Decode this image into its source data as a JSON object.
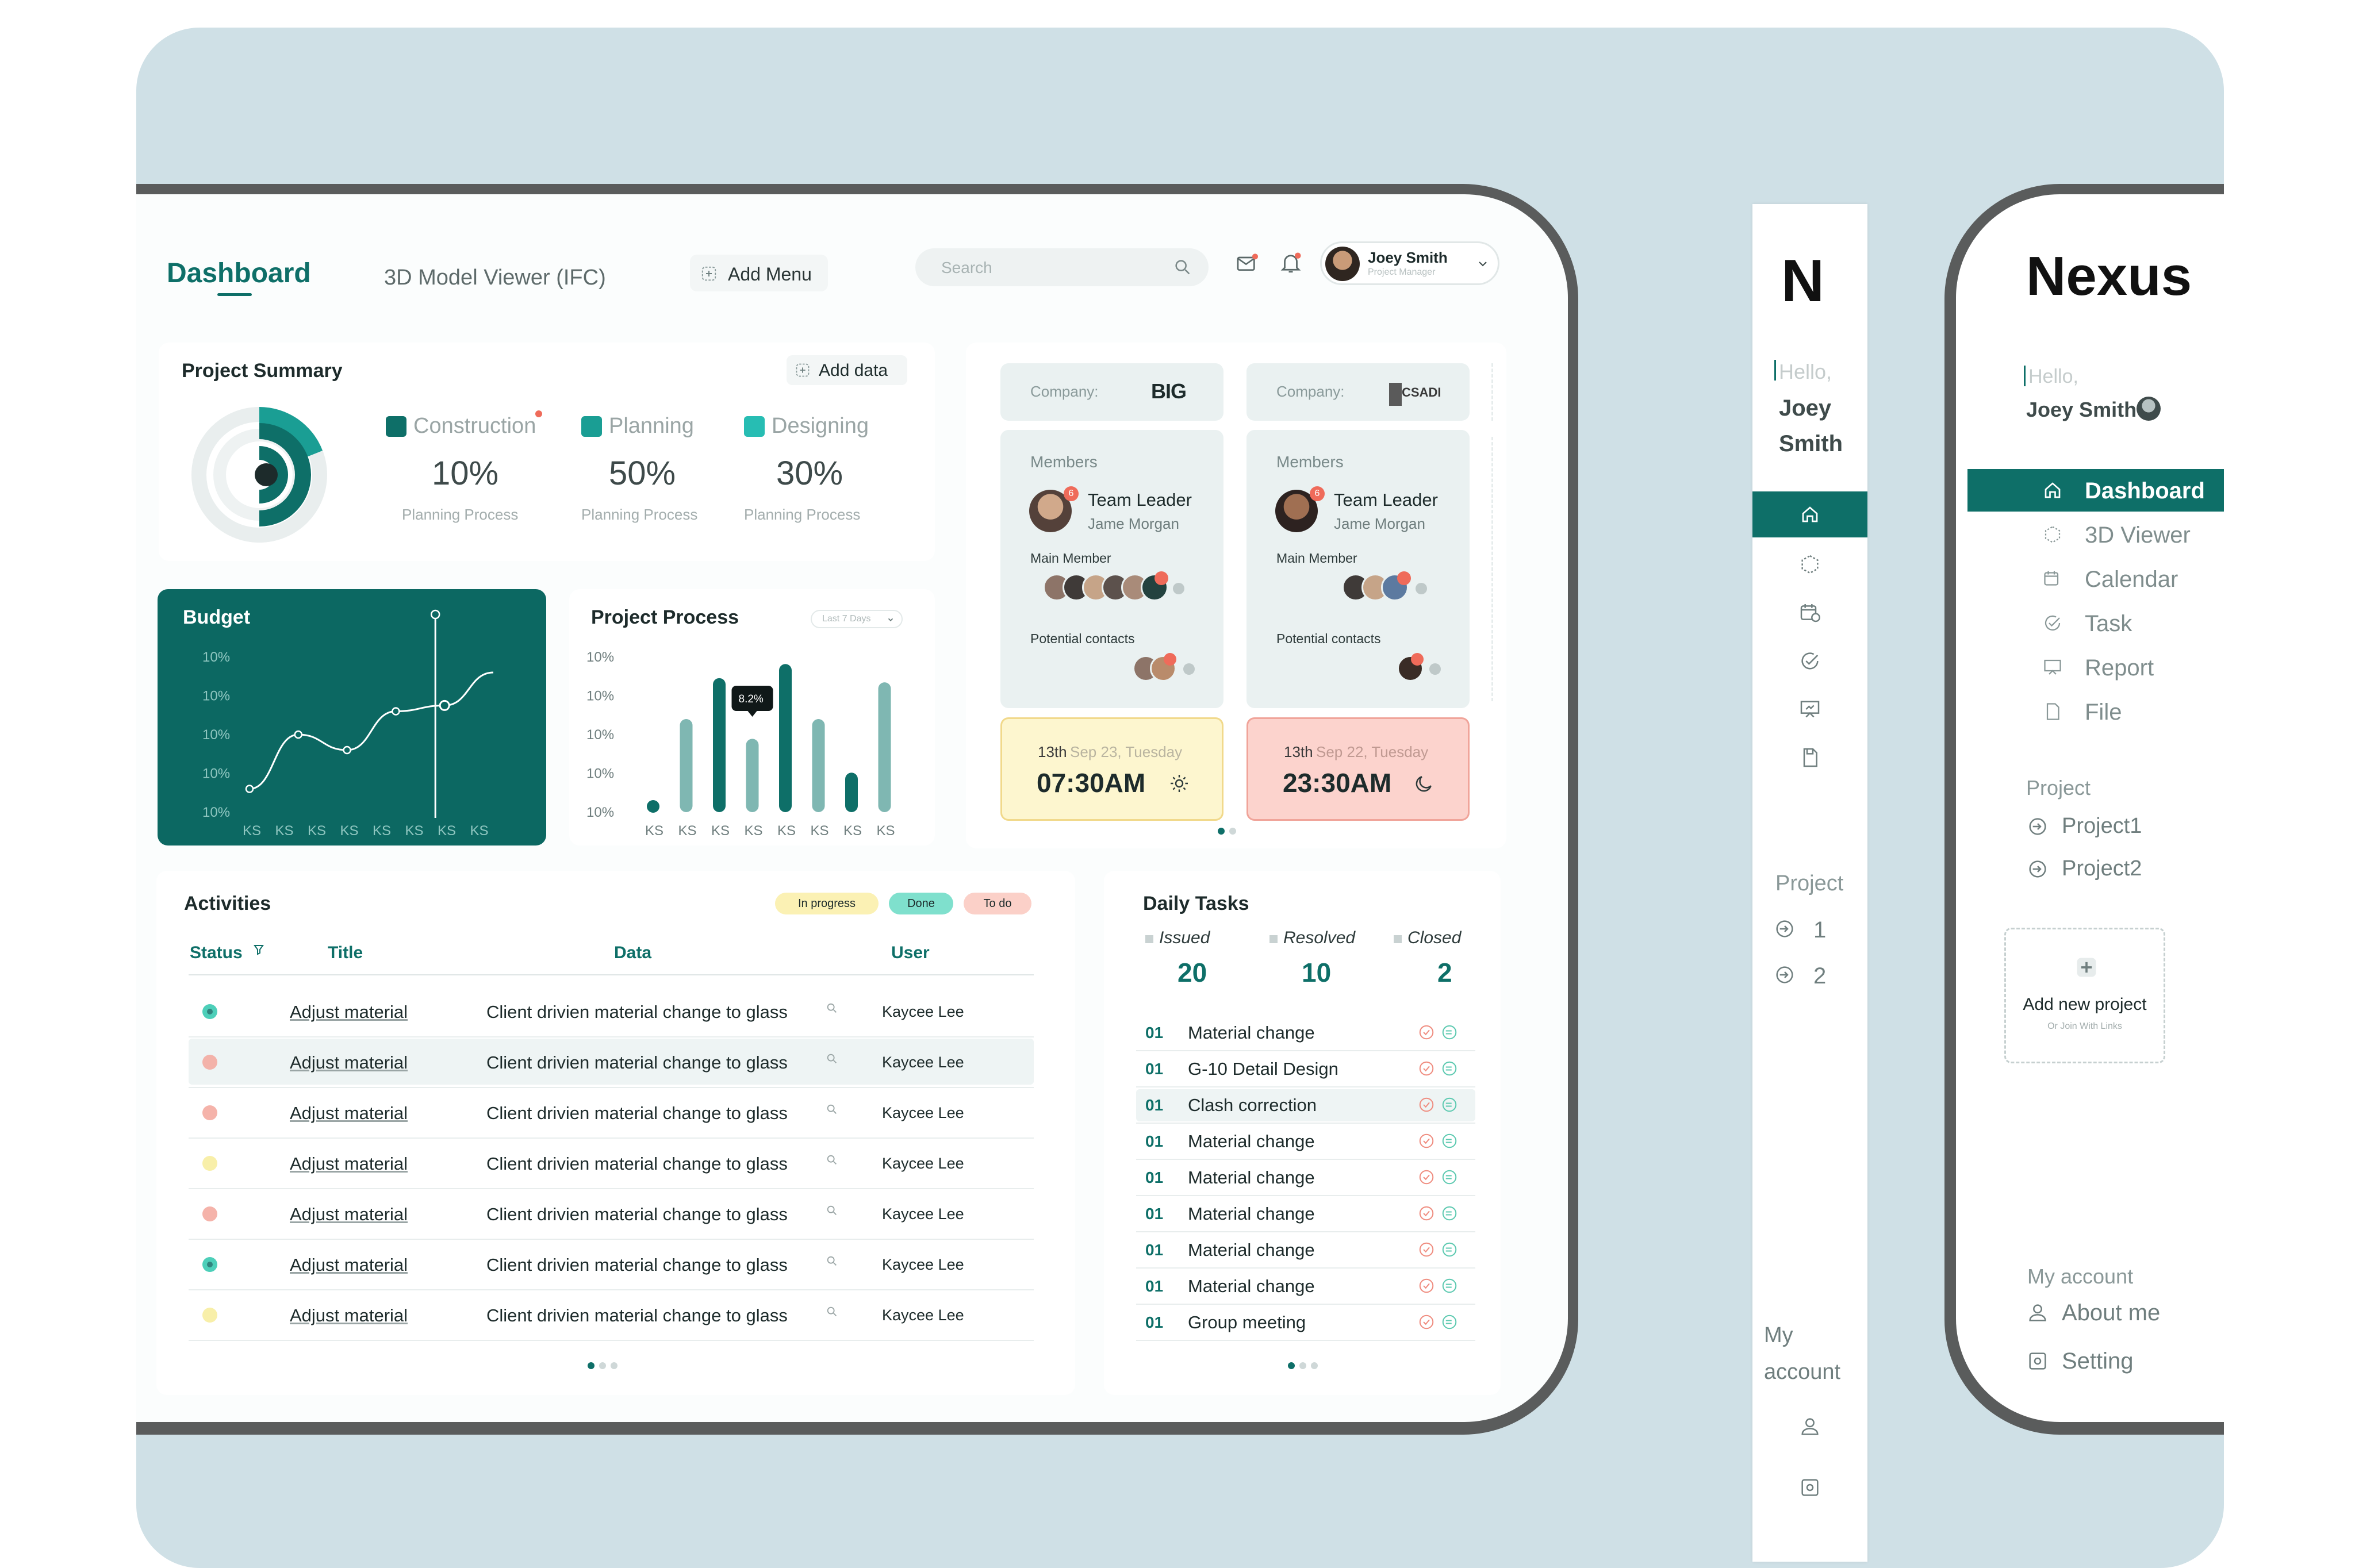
{
  "header": {
    "title": "Dashboard",
    "tab_viewer": "3D Model Viewer (IFC)",
    "add_menu": "Add Menu",
    "search_placeholder": "Search",
    "user_name": "Joey Smith",
    "user_role": "Project Manager"
  },
  "summary": {
    "title": "Project Summary",
    "add_data": "Add data",
    "items": [
      {
        "label": "Construction",
        "value": "10%",
        "sub": "Planning  Process",
        "color": "#0e6f68"
      },
      {
        "label": "Planning",
        "value": "50%",
        "sub": "Planning  Process",
        "color": "#1a9e94"
      },
      {
        "label": "Designing",
        "value": "30%",
        "sub": "Planning  Process",
        "color": "#27bdb3"
      }
    ]
  },
  "budget": {
    "title": "Budget",
    "yticks": [
      "10%",
      "10%",
      "10%",
      "10%",
      "10%"
    ],
    "xticks": [
      "KS",
      "KS",
      "KS",
      "KS",
      "KS",
      "KS",
      "KS",
      "KS"
    ],
    "line": [
      12,
      40,
      32,
      52,
      55,
      72
    ]
  },
  "process": {
    "title": "Project Process",
    "range": "Last 7 Days",
    "tooltip": "8.2%",
    "yticks": [
      "10%",
      "10%",
      "10%",
      "10%",
      "10%"
    ],
    "xticks": [
      "KS",
      "KS",
      "KS",
      "KS",
      "KS",
      "KS",
      "KS",
      "KS"
    ],
    "bars": [
      {
        "value": 8,
        "dark": true
      },
      {
        "value": 66,
        "dark": false
      },
      {
        "value": 95,
        "dark": true
      },
      {
        "value": 52,
        "dark": false
      },
      {
        "value": 105,
        "dark": true
      },
      {
        "value": 66,
        "dark": false
      },
      {
        "value": 28,
        "dark": true
      },
      {
        "value": 92,
        "dark": false
      }
    ]
  },
  "companies": [
    {
      "company_label": "Company:",
      "logo": "BIG",
      "members_label": "Members",
      "role": "Team Leader",
      "name": "Jame Morgan",
      "main_member": "Main Member",
      "potential": "Potential contacts",
      "date_bold": "13th",
      "date_rest": "Sep 23, Tuesday",
      "time": "07:30AM",
      "time_icon": "sun-icon",
      "bg": "#fdf6cf",
      "border": "#f1d98b"
    },
    {
      "company_label": "Company:",
      "logo": "CSADI",
      "members_label": "Members",
      "role": "Team Leader",
      "name": "Jame Morgan",
      "main_member": "Main Member",
      "potential": "Potential contacts",
      "date_bold": "13th",
      "date_rest": "Sep 22, Tuesday",
      "time": "23:30AM",
      "time_icon": "moon-icon",
      "bg": "#fcd3cd",
      "border": "#f0a49a"
    }
  ],
  "activities": {
    "title": "Activities",
    "legend": [
      {
        "label": "In progress",
        "bg": "#fbf1b4"
      },
      {
        "label": "Done",
        "bg": "#7fe0cd"
      },
      {
        "label": "To do",
        "bg": "#fbd0c8"
      }
    ],
    "columns": [
      "Status",
      "Title",
      "Data",
      "User"
    ],
    "rows": [
      {
        "status": "done",
        "title": "Adjust material",
        "data": "Client drivien material change to glass",
        "user": "Kaycee Lee"
      },
      {
        "status": "todo",
        "title": "Adjust material",
        "data": "Client drivien material change to glass",
        "user": "Kaycee Lee"
      },
      {
        "status": "todo",
        "title": "Adjust material",
        "data": "Client drivien material change to glass",
        "user": "Kaycee Lee"
      },
      {
        "status": "progress",
        "title": "Adjust material",
        "data": "Client drivien material change to glass",
        "user": "Kaycee Lee"
      },
      {
        "status": "todo",
        "title": "Adjust material",
        "data": "Client drivien material change to glass",
        "user": "Kaycee Lee"
      },
      {
        "status": "done",
        "title": "Adjust material",
        "data": "Client drivien material change to glass",
        "user": "Kaycee Lee"
      },
      {
        "status": "progress",
        "title": "Adjust material",
        "data": "Client drivien material change to glass",
        "user": "Kaycee Lee"
      }
    ]
  },
  "daily": {
    "title": "Daily Tasks",
    "stats": [
      {
        "label": "Issued",
        "value": "20"
      },
      {
        "label": "Resolved",
        "value": "10"
      },
      {
        "label": "Closed",
        "value": "2"
      }
    ],
    "tasks": [
      {
        "num": "01",
        "name": "Material change"
      },
      {
        "num": "01",
        "name": "G-10 Detail Design"
      },
      {
        "num": "01",
        "name": "Clash correction"
      },
      {
        "num": "01",
        "name": "Material change"
      },
      {
        "num": "01",
        "name": "Material change"
      },
      {
        "num": "01",
        "name": "Material change"
      },
      {
        "num": "01",
        "name": "Material change"
      },
      {
        "num": "01",
        "name": "Material change"
      },
      {
        "num": "01",
        "name": "Group meeting"
      }
    ]
  },
  "narrow": {
    "logo": "N",
    "hello": "Hello,",
    "first": "Joey",
    "last": "Smith",
    "project": "Project",
    "p1": "1",
    "p2": "2",
    "my": "My",
    "account": "account"
  },
  "sidebar": {
    "logo": "Nexus",
    "hello": "Hello,",
    "user": "Joey Smith",
    "nav": [
      {
        "label": "Dashboard",
        "icon": "home-icon"
      },
      {
        "label": "3D Viewer",
        "icon": "cube-icon"
      },
      {
        "label": "Calendar",
        "icon": "calendar-icon"
      },
      {
        "label": "Task",
        "icon": "check-icon"
      },
      {
        "label": "Report",
        "icon": "presentation-icon"
      },
      {
        "label": "File",
        "icon": "file-icon"
      }
    ],
    "project_heading": "Project",
    "projects": [
      "Project1",
      "Project2"
    ],
    "add_project": "Add new project",
    "add_project_sub": "Or Join With Links",
    "account_heading": "My account",
    "about": "About me",
    "setting": "Setting"
  }
}
